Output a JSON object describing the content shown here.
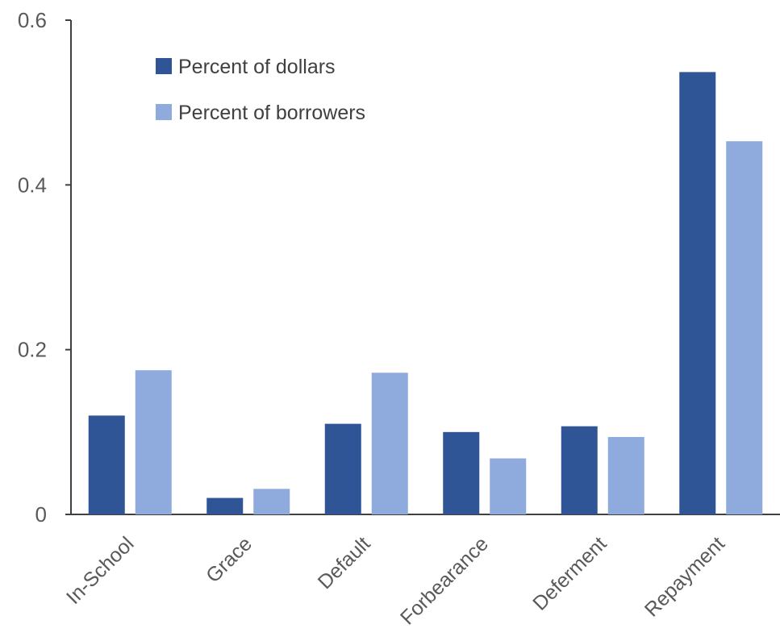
{
  "chart_data": {
    "type": "bar",
    "categories": [
      "In-School",
      "Grace",
      "Default",
      "Forbearance",
      "Deferment",
      "Repayment"
    ],
    "series": [
      {
        "name": "Percent of dollars",
        "color": "#2F5597",
        "values": [
          0.12,
          0.02,
          0.11,
          0.1,
          0.107,
          0.537
        ]
      },
      {
        "name": "Percent of borrowers",
        "color": "#8FAADC",
        "values": [
          0.175,
          0.031,
          0.172,
          0.068,
          0.094,
          0.453
        ]
      }
    ],
    "yticks": [
      "0",
      "0.2",
      "0.4",
      "0.6"
    ],
    "ylim": [
      0,
      0.6
    ],
    "grid": false,
    "legend_position": "top-left",
    "title": "",
    "xlabel": "",
    "ylabel": ""
  }
}
